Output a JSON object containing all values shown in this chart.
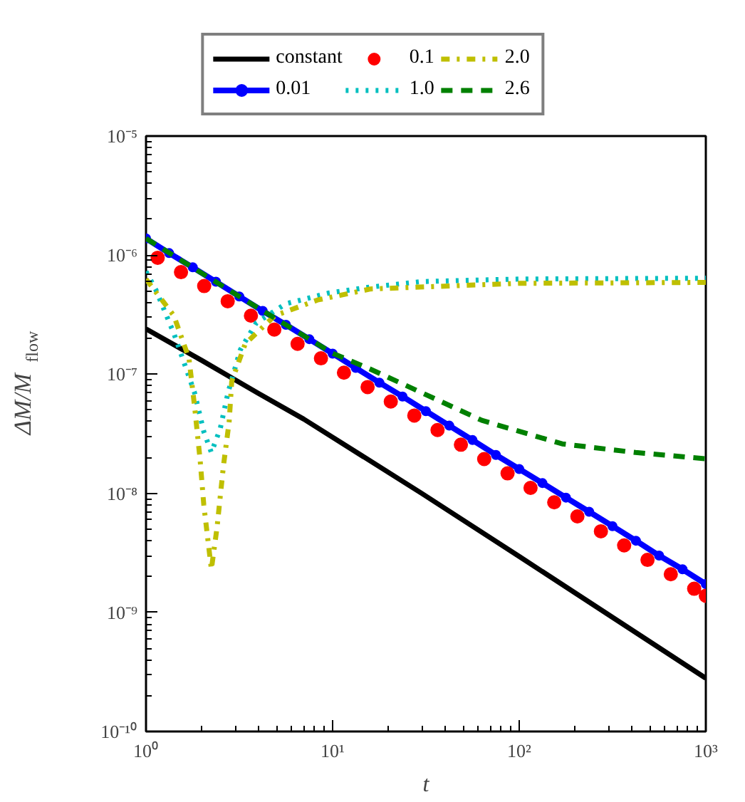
{
  "chart_data": {
    "type": "line",
    "xlabel": "t",
    "ylabel": "ΔM/M$_{flow}$",
    "log": "xy",
    "xlim": [
      1,
      1000
    ],
    "ylim": [
      1e-10,
      1e-05
    ],
    "xticks": [
      {
        "value": 1,
        "label": "10⁰"
      },
      {
        "value": 10,
        "label": "10¹"
      },
      {
        "value": 100,
        "label": "10²"
      },
      {
        "value": 1000,
        "label": "10³"
      }
    ],
    "yticks": [
      {
        "value": 1e-10,
        "label": "10⁻¹⁰"
      },
      {
        "value": 1e-09,
        "label": "10⁻⁹"
      },
      {
        "value": 1e-08,
        "label": "10⁻⁸"
      },
      {
        "value": 1e-07,
        "label": "10⁻⁷"
      },
      {
        "value": 1e-06,
        "label": "10⁻⁶"
      },
      {
        "value": 1e-05,
        "label": "10⁻⁵"
      }
    ],
    "grid": false,
    "legend": "top",
    "series": [
      {
        "name": "constant",
        "line_style": "solid",
        "color": "#000000",
        "x": [
          1,
          2,
          4,
          7,
          30,
          100,
          1000
        ],
        "values": [
          2.4e-07,
          1.3e-07,
          6.9e-08,
          4.2e-08,
          1e-08,
          2.95e-09,
          2.8e-10
        ]
      },
      {
        "name": "0.01",
        "line_style": "solid",
        "marker": "circle",
        "color": "#0000ff",
        "x": [
          1,
          1.33,
          1.78,
          2.37,
          3.16,
          4.22,
          5.62,
          7.5,
          10,
          13.3,
          17.8,
          23.7,
          31.6,
          42.2,
          56.2,
          75,
          100,
          133,
          178,
          237,
          316,
          422,
          562,
          750,
          1000
        ],
        "values": [
          1.38e-06,
          1.04e-06,
          7.9e-07,
          5.98e-07,
          4.5e-07,
          3.4e-07,
          2.6e-07,
          1.97e-07,
          1.49e-07,
          1.13e-07,
          8.5e-08,
          6.5e-08,
          4.9e-08,
          3.7e-08,
          2.8e-08,
          2.1e-08,
          1.6e-08,
          1.22e-08,
          9.2e-09,
          7e-09,
          5.3e-09,
          4e-09,
          3e-09,
          2.3e-09,
          1.73e-09
        ]
      },
      {
        "name": "0.1",
        "type": "scatter",
        "marker": "circle",
        "color": "#ff0000",
        "x": [
          1.155,
          1.54,
          2.05,
          2.74,
          3.65,
          4.87,
          6.49,
          8.66,
          11.5,
          15.4,
          20.5,
          27.4,
          36.5,
          48.7,
          64.9,
          86.6,
          115,
          154,
          205,
          274,
          365,
          487,
          649,
          866,
          1000
        ],
        "values": [
          9.5e-07,
          7.2e-07,
          5.5e-07,
          4.1e-07,
          3.1e-07,
          2.37e-07,
          1.8e-07,
          1.36e-07,
          1.03e-07,
          7.8e-08,
          5.9e-08,
          4.5e-08,
          3.4e-08,
          2.56e-08,
          1.94e-08,
          1.47e-08,
          1.11e-08,
          8.4e-09,
          6.4e-09,
          4.8e-09,
          3.65e-09,
          2.76e-09,
          2.09e-09,
          1.58e-09,
          1.38e-09
        ]
      },
      {
        "name": "1.0",
        "line_style": "dotted",
        "color": "#00bfbf",
        "x": [
          1,
          1.13,
          1.41,
          1.82,
          2.04,
          2.24,
          2.5,
          2.75,
          3.2,
          3.9,
          5.6,
          9.5,
          16,
          30,
          100,
          1000
        ],
        "values": [
          7.3e-07,
          5.1e-07,
          2.2e-07,
          7e-08,
          3.3e-08,
          2.2e-08,
          3.5e-08,
          7e-08,
          1.6e-07,
          2.7e-07,
          3.9e-07,
          4.8e-07,
          5.4e-07,
          6e-07,
          6.3e-07,
          6.4e-07
        ]
      },
      {
        "name": "2.0",
        "line_style": "dashdot",
        "color": "#bfbf00",
        "x": [
          1,
          1.41,
          1.7,
          1.82,
          1.95,
          2.04,
          2.24,
          2.4,
          2.6,
          2.79,
          2.88,
          3.4,
          4.9,
          8.3,
          16,
          100,
          1000
        ],
        "values": [
          6.3e-07,
          3.1e-07,
          1.35e-07,
          5.4e-08,
          1.9e-08,
          8e-09,
          2.3e-09,
          5.1e-09,
          1.7e-08,
          4e-08,
          8.7e-08,
          1.8e-07,
          3.1e-07,
          4.2e-07,
          5.2e-07,
          5.8e-07,
          5.9e-07
        ]
      },
      {
        "name": "2.6",
        "line_style": "dashed",
        "color": "#008000",
        "x": [
          1,
          3.16,
          10,
          16,
          30,
          63,
          170,
          420,
          1000
        ],
        "values": [
          1.38e-06,
          4.5e-07,
          1.5e-07,
          1.1e-07,
          7e-08,
          4.1e-08,
          2.6e-08,
          2.2e-08,
          1.95e-08
        ]
      }
    ]
  }
}
